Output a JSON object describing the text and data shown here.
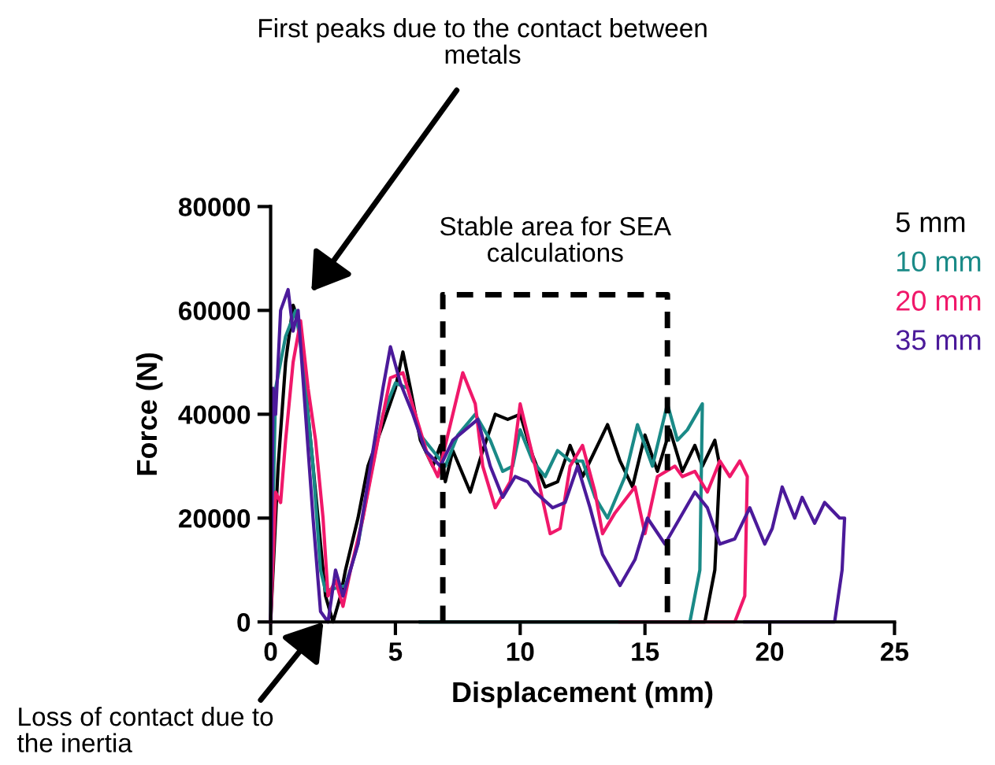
{
  "chart_data": {
    "type": "line",
    "xlabel": "Displacement (mm)",
    "ylabel": "Force (N)",
    "xlim": [
      0,
      25
    ],
    "xticks": [
      0,
      5,
      10,
      15,
      20,
      25
    ],
    "ylim": [
      0,
      80000
    ],
    "yticks": [
      0,
      20000,
      40000,
      60000,
      80000
    ],
    "grid": false,
    "legend": "top right",
    "marker": "none",
    "line_style": "solid",
    "series": [
      {
        "name": "5 mm",
        "color": "#000000",
        "x": [
          0,
          0.3,
          0.6,
          0.9,
          1.2,
          1.5,
          1.9,
          2.2,
          2.5,
          2.8,
          3.0,
          3.5,
          3.9,
          4.5,
          5.0,
          5.3,
          5.6,
          6.0,
          6.5,
          6.8,
          7.0,
          7.3,
          8.0,
          8.5,
          9.0,
          9.5,
          10.0,
          10.5,
          11.0,
          11.5,
          12.0,
          12.5,
          13.0,
          13.5,
          14.0,
          14.5,
          15.0,
          15.5,
          16.0,
          16.5,
          17.0,
          17.3,
          17.8,
          18.0,
          17.8,
          17.4,
          12.0,
          6.0
        ],
        "values": [
          0,
          30000,
          50000,
          61000,
          57000,
          40000,
          20000,
          5000,
          0,
          5000,
          10000,
          20000,
          30000,
          38000,
          45000,
          52000,
          45000,
          35000,
          30000,
          34000,
          27000,
          33000,
          25000,
          33000,
          40000,
          39000,
          40000,
          32000,
          26000,
          27000,
          34000,
          28000,
          33000,
          38000,
          31000,
          26000,
          36000,
          29000,
          37000,
          29000,
          34000,
          30000,
          35000,
          30000,
          10000,
          0,
          0,
          0
        ]
      },
      {
        "name": "10 mm",
        "color": "#1a8a87",
        "x": [
          0,
          0.2,
          0.6,
          1.0,
          1.3,
          1.7,
          2.0,
          2.2,
          3.0,
          3.5,
          4.0,
          4.5,
          5.0,
          5.5,
          6.0,
          6.5,
          7.0,
          7.5,
          8.2,
          8.8,
          9.3,
          9.7,
          10.0,
          10.5,
          11.0,
          11.5,
          12.0,
          12.5,
          13.0,
          13.5,
          14.2,
          14.7,
          15.3,
          15.9,
          16.3,
          16.7,
          17.3,
          17.2,
          16.8,
          12.0,
          6.0
        ],
        "values": [
          0,
          45000,
          55000,
          60000,
          50000,
          30000,
          10000,
          6000,
          7000,
          15000,
          28000,
          40000,
          46000,
          45000,
          36000,
          33000,
          30000,
          36000,
          40000,
          35000,
          29000,
          30000,
          37000,
          31000,
          28000,
          33000,
          31000,
          31000,
          24000,
          20000,
          28000,
          38000,
          30000,
          42000,
          35000,
          37000,
          42000,
          10000,
          0,
          0,
          0
        ]
      },
      {
        "name": "20 mm",
        "color": "#f0186a",
        "x": [
          0,
          0.2,
          0.4,
          0.6,
          0.9,
          1.2,
          1.5,
          1.8,
          2.1,
          2.3,
          2.6,
          2.9,
          3.2,
          3.7,
          4.3,
          4.8,
          5.3,
          5.8,
          6.3,
          6.7,
          7.2,
          7.7,
          8.2,
          8.5,
          9.0,
          9.6,
          10.0,
          10.6,
          11.2,
          11.6,
          12.0,
          12.5,
          13.0,
          13.3,
          13.8,
          14.6,
          15.0,
          15.5,
          16.2,
          16.5,
          17.0,
          17.5,
          18.0,
          18.4,
          18.8,
          19.1,
          19.0,
          18.6,
          14.0
        ],
        "values": [
          0,
          25000,
          23000,
          35000,
          50000,
          58000,
          45000,
          35000,
          20000,
          5000,
          8000,
          3000,
          10000,
          20000,
          35000,
          47000,
          48000,
          40000,
          32000,
          28000,
          38000,
          48000,
          42000,
          30000,
          22000,
          27000,
          42000,
          30000,
          17000,
          18000,
          30000,
          34000,
          25000,
          17000,
          21000,
          26000,
          17000,
          28000,
          30000,
          28000,
          29000,
          25000,
          31000,
          28000,
          31000,
          28000,
          5000,
          0,
          0
        ]
      },
      {
        "name": "35 mm",
        "color": "#4b1a9a",
        "x": [
          0,
          0.1,
          0.2,
          0.4,
          0.7,
          0.9,
          1.1,
          1.4,
          1.7,
          2.0,
          2.3,
          2.6,
          2.9,
          3.5,
          4.0,
          4.5,
          4.8,
          5.2,
          5.7,
          6.2,
          6.8,
          7.3,
          7.8,
          8.3,
          8.8,
          9.3,
          9.8,
          10.3,
          10.6,
          11.3,
          11.8,
          12.3,
          12.8,
          13.3,
          14.0,
          14.6,
          15.1,
          15.8,
          16.4,
          17.0,
          17.5,
          18.0,
          18.6,
          19.2,
          19.8,
          20.1,
          20.5,
          21.0,
          21.3,
          21.8,
          22.2,
          22.8,
          23.0,
          22.9,
          22.6,
          19.0
        ],
        "values": [
          0,
          45000,
          40000,
          60000,
          64000,
          56000,
          60000,
          40000,
          20000,
          2000,
          0,
          10000,
          5000,
          15000,
          30000,
          45000,
          53000,
          46000,
          40000,
          33000,
          30000,
          35000,
          37000,
          39000,
          30000,
          24000,
          28000,
          27000,
          25000,
          22000,
          23000,
          30000,
          22000,
          13000,
          7000,
          12000,
          20000,
          15000,
          20000,
          25000,
          22000,
          15000,
          16000,
          22000,
          15000,
          18000,
          26000,
          20000,
          24000,
          19000,
          23000,
          20000,
          20000,
          10000,
          0,
          0
        ]
      },
      {
        "color": "#000000",
        "line_style": "dashed",
        "x": [
          6.9,
          6.9,
          15.9,
          15.9
        ],
        "values": [
          0,
          63000,
          63000,
          0
        ]
      }
    ],
    "annotations": [
      "Stable area for SEA calculations",
      "First peaks due to the contact between metals",
      "Loss of contact due to the inertia"
    ]
  }
}
